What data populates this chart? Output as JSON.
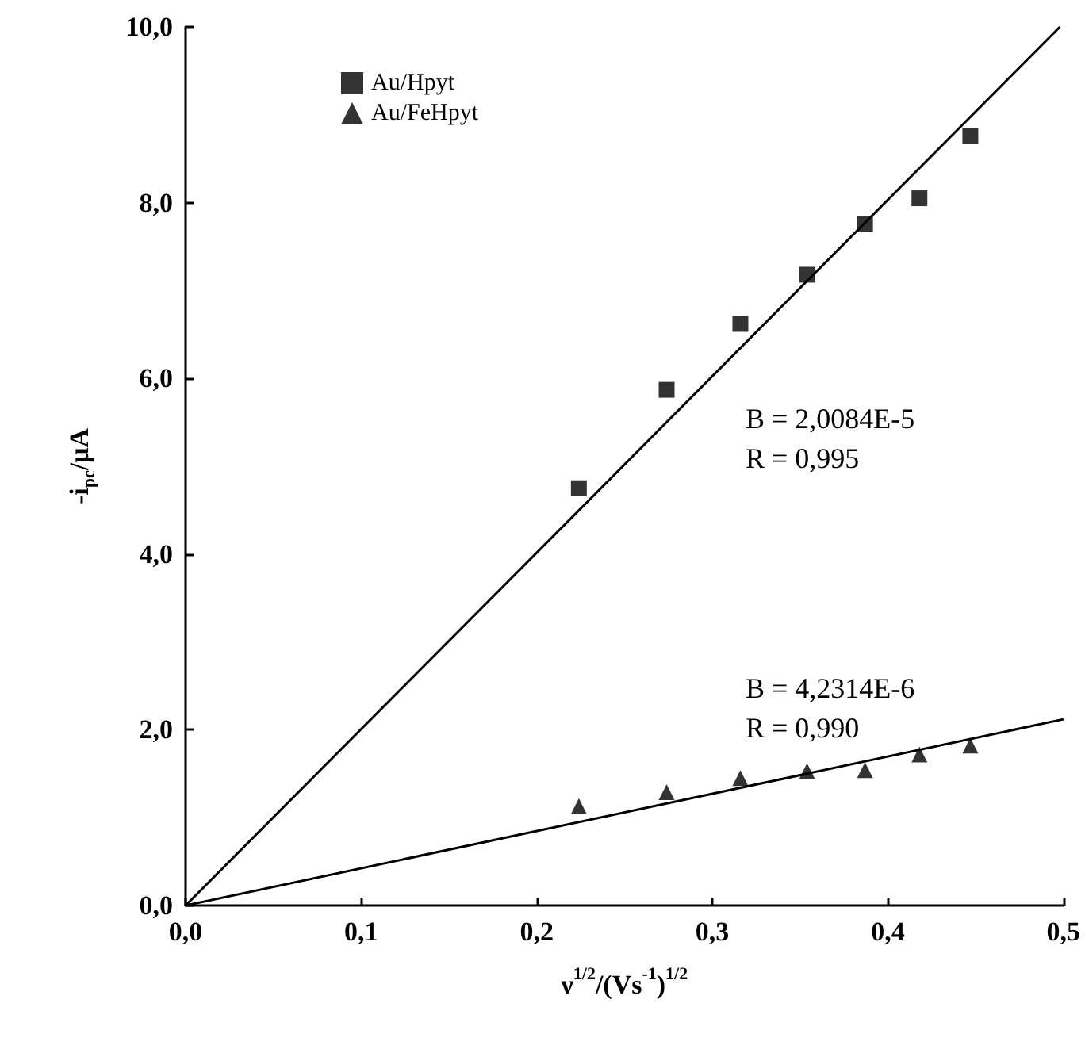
{
  "chart_data": {
    "type": "scatter",
    "xlabel": "ν$^{1/2}$/(Vs$^{-1}$)$^{1/2}$",
    "ylabel": "-i$_{pc}$/μA",
    "xlim": [
      0,
      0.5
    ],
    "xticks": [
      {
        "value": 0,
        "label": "0,0"
      },
      {
        "value": 0.1,
        "label": "0,1"
      },
      {
        "value": 0.2,
        "label": "0,2"
      },
      {
        "value": 0.3,
        "label": "0,3"
      },
      {
        "value": 0.4,
        "label": "0,4"
      },
      {
        "value": 0.5,
        "label": "0,5"
      }
    ],
    "ylim": [
      0,
      10
    ],
    "yticks": [
      {
        "value": 0,
        "label": "0,0"
      },
      {
        "value": 2,
        "label": "2,0"
      },
      {
        "value": 4,
        "label": "4,0"
      },
      {
        "value": 6,
        "label": "6,0"
      },
      {
        "value": 8,
        "label": "8,0"
      },
      {
        "value": 10,
        "label": "10,0"
      }
    ],
    "grid": false,
    "legend": "top left",
    "series": [
      {
        "name": "Au/Hpyt",
        "marker": "square",
        "color": "#000000",
        "x": [
          0.224,
          0.274,
          0.316,
          0.354,
          0.387,
          0.418,
          0.447
        ],
        "values": [
          4.75,
          5.87,
          6.62,
          7.18,
          7.76,
          8.05,
          8.76
        ]
      },
      {
        "name": "Au/FeHpyt",
        "marker": "triangle",
        "color": "#000000",
        "x": [
          0.224,
          0.274,
          0.316,
          0.354,
          0.387,
          0.418,
          0.447
        ],
        "values": [
          1.13,
          1.29,
          1.45,
          1.53,
          1.54,
          1.72,
          1.82
        ]
      },
      {
        "type": "line",
        "marker": "none",
        "color": "#000000",
        "x": [
          0,
          0.498
        ],
        "values": [
          0,
          10
        ]
      },
      {
        "type": "line",
        "marker": "none",
        "color": "#000000",
        "x": [
          0,
          0.5
        ],
        "values": [
          0,
          2.12
        ]
      }
    ],
    "annotations": [
      "B = 2,0084E-5",
      "R = 0,995",
      "B = 4,2314E-6",
      "R = 0,990"
    ]
  }
}
